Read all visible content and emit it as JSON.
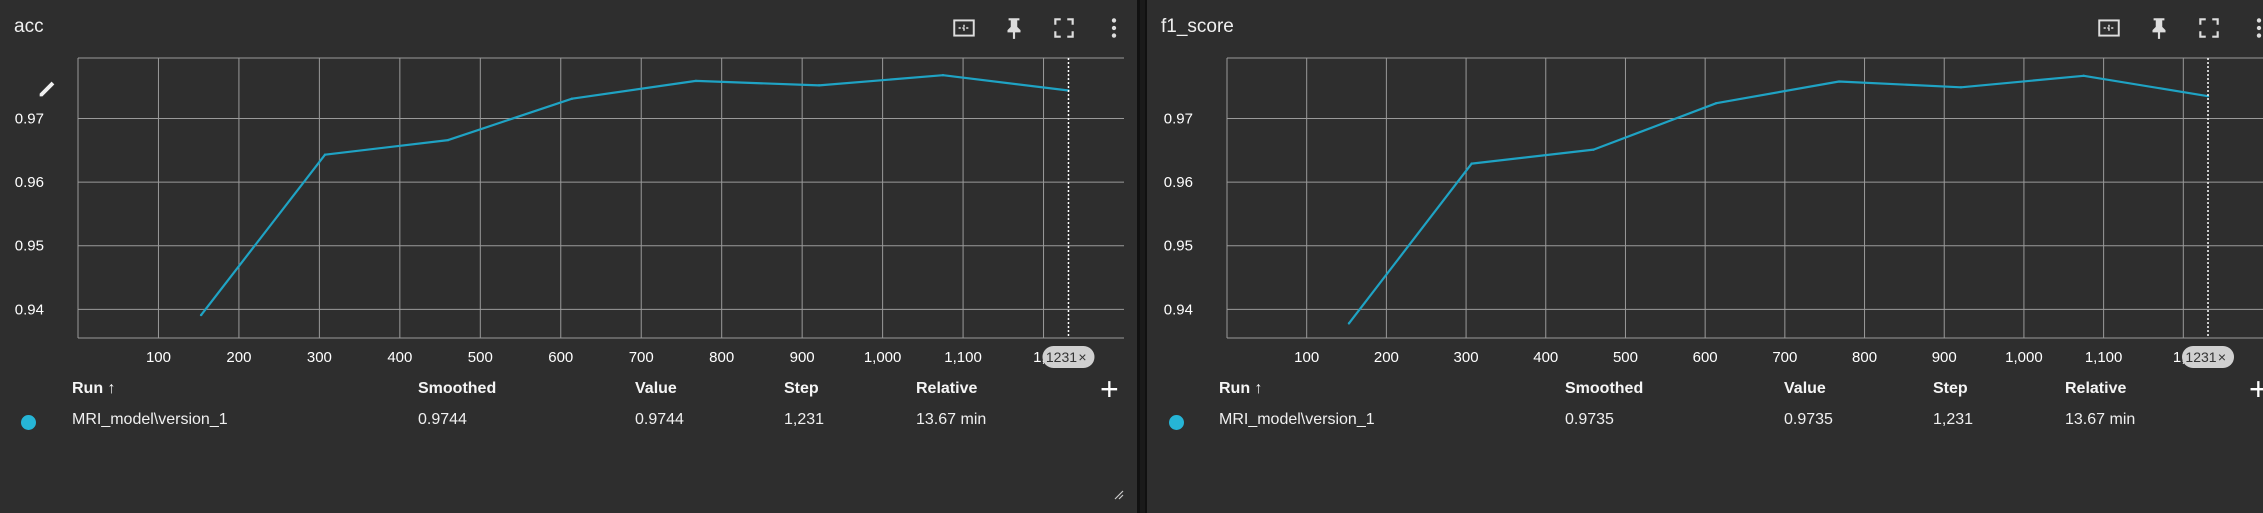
{
  "colors": {
    "card_bg": "#2e2e2e",
    "grid": "#9a9a9a",
    "line": "#1fa3c4",
    "run_dot": "#26b5d6",
    "badge_bg": "#d0d0d0"
  },
  "toolbar": {
    "icons": [
      "fit-domain-icon",
      "pin-icon",
      "fullscreen-icon",
      "more-vert-icon"
    ]
  },
  "table": {
    "headers": {
      "run": "Run ↑",
      "smoothed": "Smoothed",
      "value": "Value",
      "step": "Step",
      "relative": "Relative"
    },
    "add_label": "+"
  },
  "cards": [
    {
      "title": "acc",
      "row": {
        "run": "MRI_model\\version_1",
        "smoothed": "0.9744",
        "value": "0.9744",
        "step": "1,231",
        "relative": "13.67 min"
      },
      "cursor_badge": "1231",
      "chart_data": {
        "type": "line",
        "title": "acc",
        "xlabel": "",
        "ylabel": "",
        "x_ticks": [
          "100",
          "200",
          "300",
          "400",
          "500",
          "600",
          "700",
          "800",
          "900",
          "1,000",
          "1,100",
          "1,2"
        ],
        "y_ticks": [
          "0.94",
          "0.95",
          "0.96",
          "0.97"
        ],
        "xlim": [
          0,
          1300
        ],
        "ylim": [
          0.9355,
          0.9795
        ],
        "grid": true,
        "series": [
          {
            "x": [
              153,
              307,
              460,
              614,
              768,
              921,
              1075,
              1231
            ],
            "y": [
              0.9391,
              0.9643,
              0.9666,
              0.9731,
              0.9759,
              0.9752,
              0.9768,
              0.9744
            ]
          }
        ],
        "cursor_x": 1231
      }
    },
    {
      "title": "f1_score",
      "row": {
        "run": "MRI_model\\version_1",
        "smoothed": "0.9735",
        "value": "0.9735",
        "step": "1,231",
        "relative": "13.67 min"
      },
      "cursor_badge": "1231",
      "chart_data": {
        "type": "line",
        "title": "f1_score",
        "xlabel": "",
        "ylabel": "",
        "x_ticks": [
          "100",
          "200",
          "300",
          "400",
          "500",
          "600",
          "700",
          "800",
          "900",
          "1,000",
          "1,100",
          "1,2"
        ],
        "y_ticks": [
          "0.94",
          "0.95",
          "0.96",
          "0.97"
        ],
        "xlim": [
          0,
          1300
        ],
        "ylim": [
          0.9355,
          0.9795
        ],
        "grid": true,
        "series": [
          {
            "x": [
              153,
              307,
              460,
              614,
              768,
              921,
              1075,
              1231
            ],
            "y": [
              0.9378,
              0.9629,
              0.9651,
              0.9724,
              0.9758,
              0.9749,
              0.9767,
              0.9735
            ]
          }
        ],
        "cursor_x": 1231
      }
    }
  ]
}
